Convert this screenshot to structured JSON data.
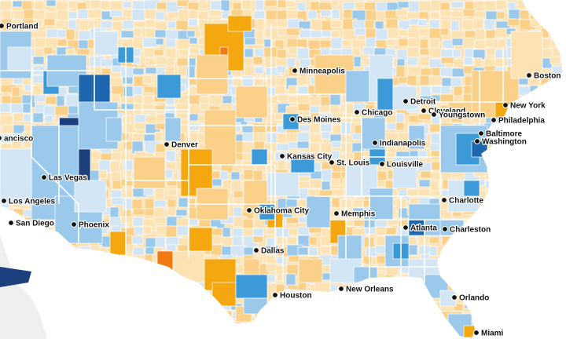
{
  "colors": {
    "land_base": "#fde7c2",
    "water": "#ffffff",
    "gulf_gray": "#efefef",
    "scale": {
      "dark_orange": "#f07a10",
      "orange": "#f5a70f",
      "light_orange": "#fbd088",
      "pale_orange": "#fde2b3",
      "pale_blue": "#d3e6f6",
      "light_blue": "#9ac9ec",
      "blue": "#3c9ad8",
      "dark_blue": "#1e66ad",
      "navy": "#1c3f7e"
    }
  },
  "cities": [
    {
      "name": "Portland",
      "key": "portland"
    },
    {
      "name": "ancisco",
      "key": "san-francisco"
    },
    {
      "name": "Los Angeles",
      "key": "los-angeles"
    },
    {
      "name": "San Diego",
      "key": "san-diego"
    },
    {
      "name": "Las Vegas",
      "key": "las-vegas"
    },
    {
      "name": "Phoenix",
      "key": "phoenix"
    },
    {
      "name": "Denver",
      "key": "denver"
    },
    {
      "name": "Minneapolis",
      "key": "minneapolis"
    },
    {
      "name": "Des Moines",
      "key": "des-moines"
    },
    {
      "name": "Kansas City",
      "key": "kansas-city"
    },
    {
      "name": "St. Louis",
      "key": "st-louis"
    },
    {
      "name": "Chicago",
      "key": "chicago"
    },
    {
      "name": "Detroit",
      "key": "detroit"
    },
    {
      "name": "Cleveland",
      "key": "cleveland"
    },
    {
      "name": "Youngstown",
      "key": "youngstown"
    },
    {
      "name": "Indianapolis",
      "key": "indianapolis"
    },
    {
      "name": "Louisville",
      "key": "louisville"
    },
    {
      "name": "Boston",
      "key": "boston"
    },
    {
      "name": "New York",
      "key": "new-york"
    },
    {
      "name": "Philadelphia",
      "key": "philadelphia"
    },
    {
      "name": "Baltimore",
      "key": "baltimore"
    },
    {
      "name": "Washington",
      "key": "washington"
    },
    {
      "name": "Charlotte",
      "key": "charlotte"
    },
    {
      "name": "Atlanta",
      "key": "atlanta"
    },
    {
      "name": "Charleston",
      "key": "charleston"
    },
    {
      "name": "Memphis",
      "key": "memphis"
    },
    {
      "name": "Oklahoma City",
      "key": "oklahoma-city"
    },
    {
      "name": "Dallas",
      "key": "dallas"
    },
    {
      "name": "Houston",
      "key": "houston"
    },
    {
      "name": "New Orleans",
      "key": "new-orleans"
    },
    {
      "name": "Orlando",
      "key": "orlando"
    },
    {
      "name": "Miami",
      "key": "miami"
    }
  ]
}
